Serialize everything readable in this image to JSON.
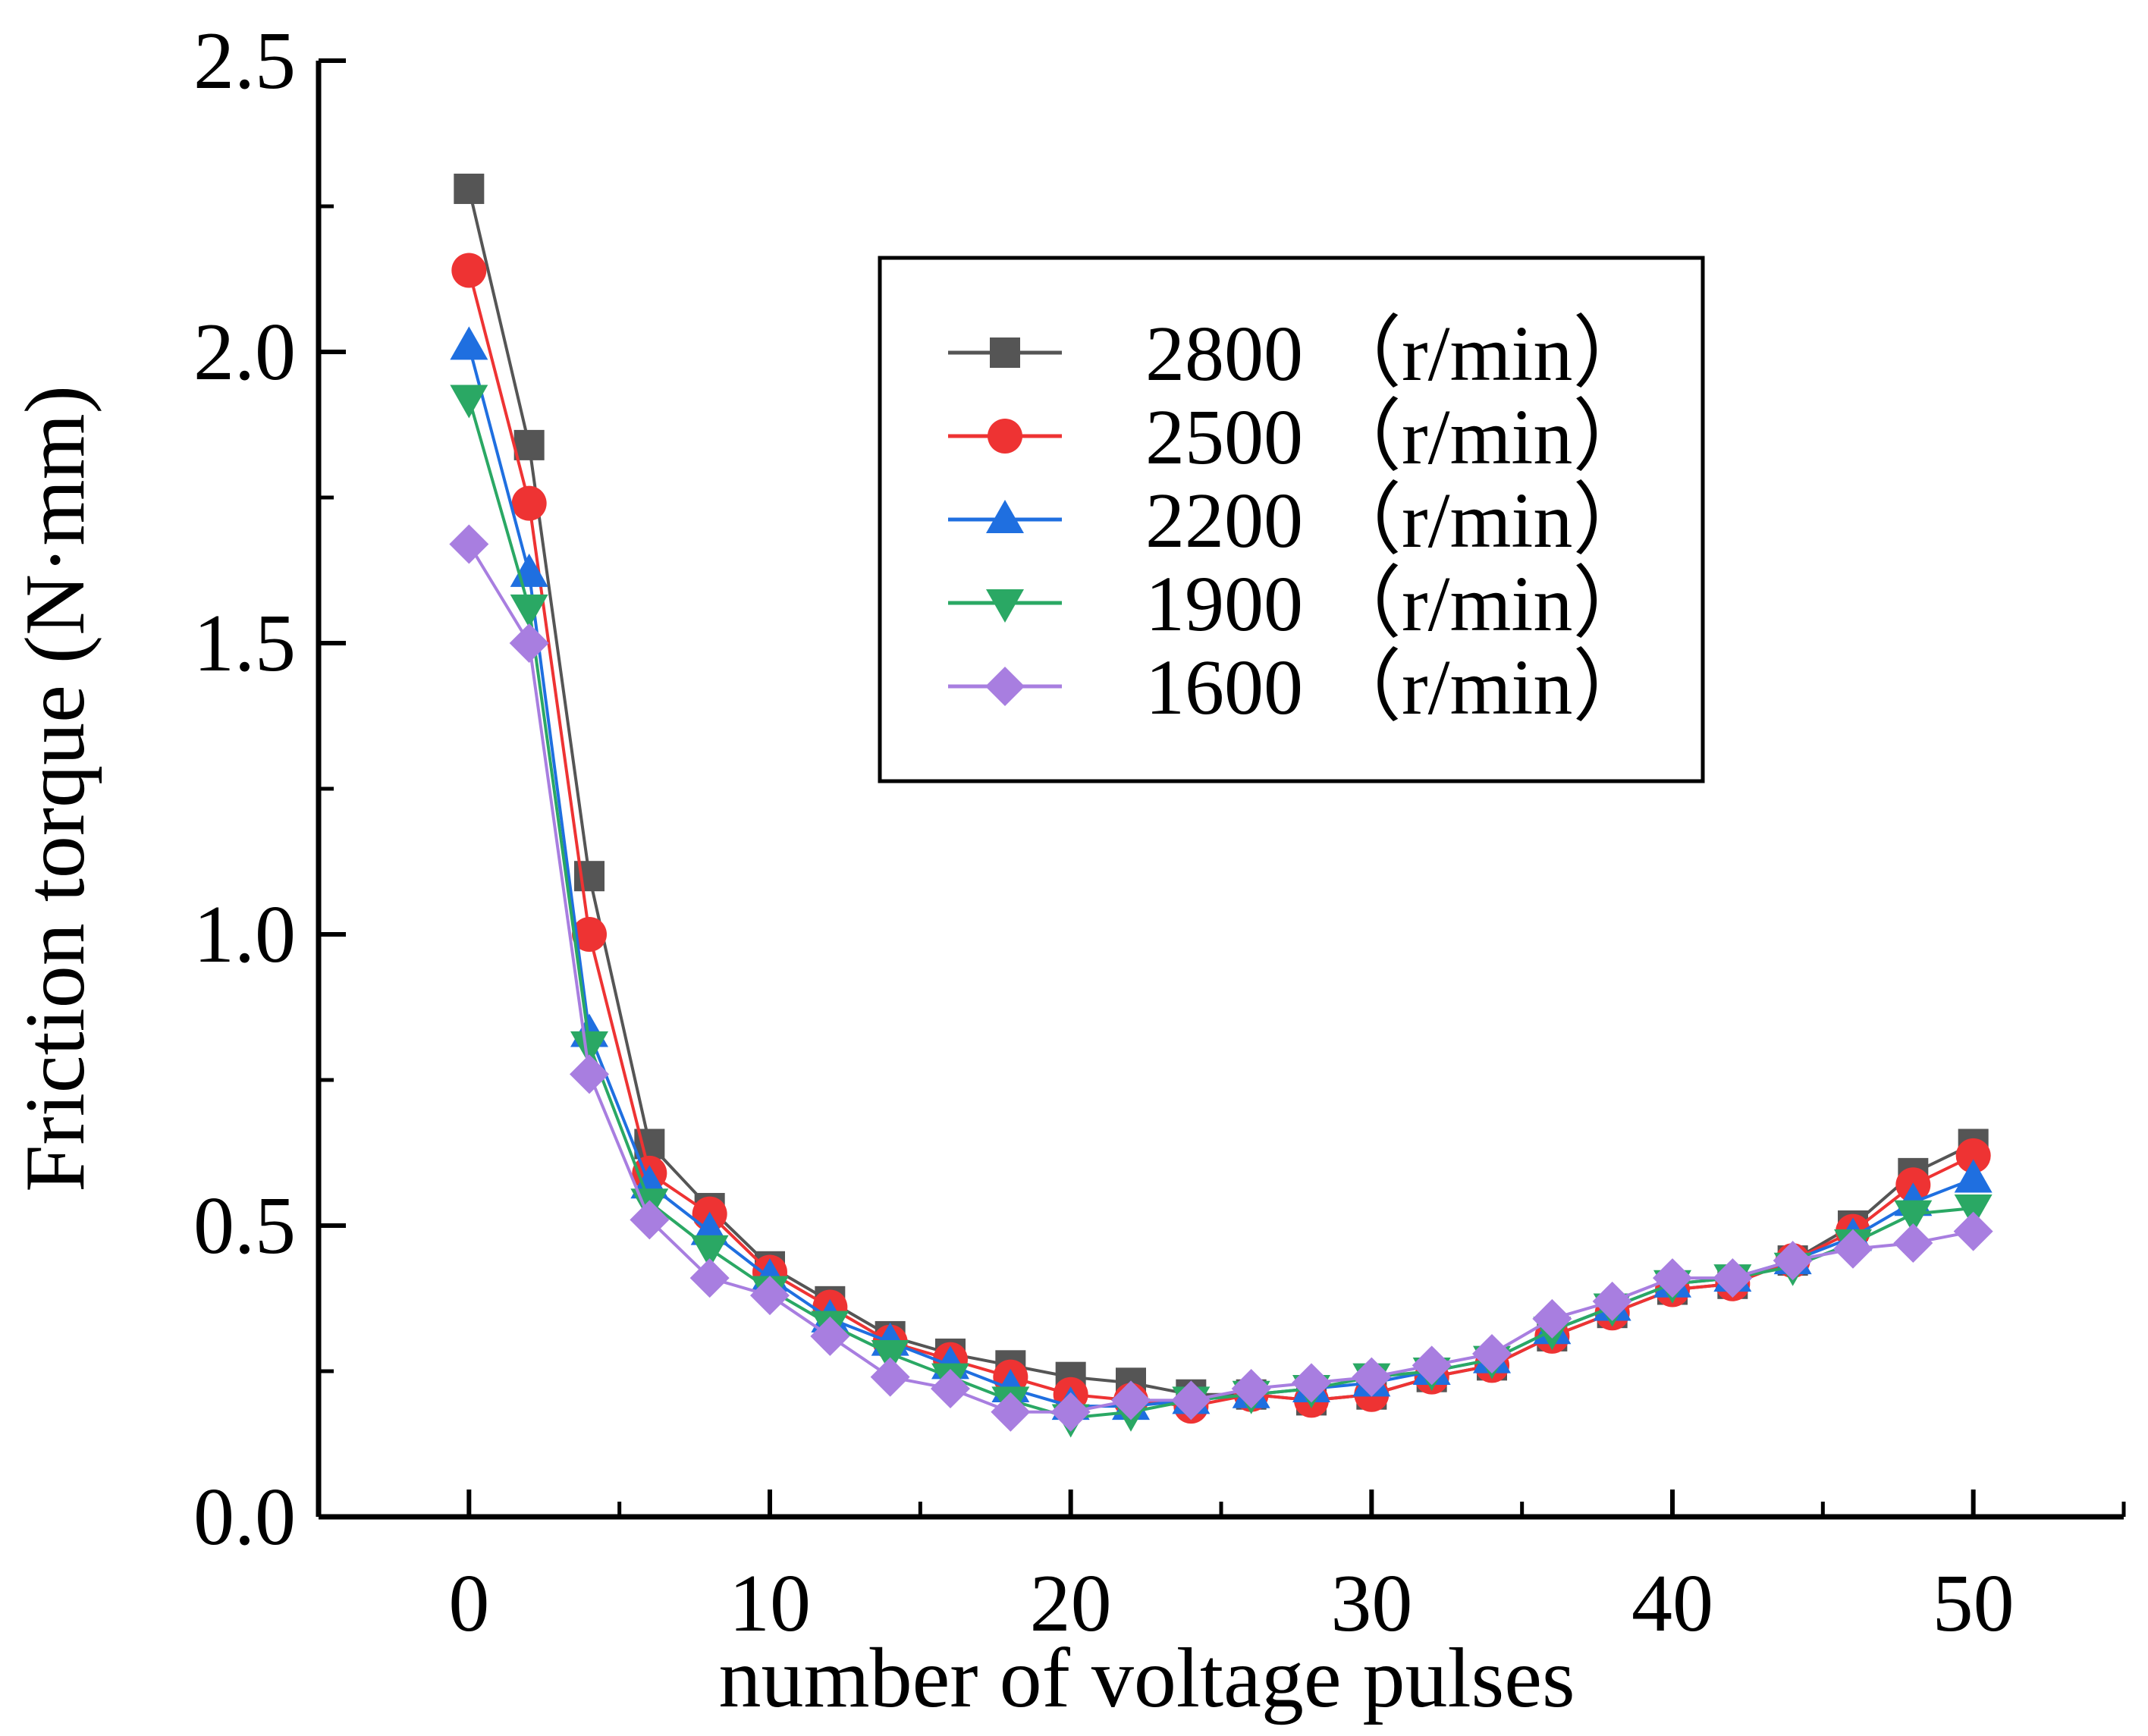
{
  "chart_data": {
    "type": "line",
    "title": "",
    "xlabel": "number of voltage pulses",
    "ylabel": "Friction torque (N·mm)",
    "xlim": [
      -5,
      55
    ],
    "ylim": [
      0,
      2.5
    ],
    "xticks": [
      0,
      10,
      20,
      30,
      40,
      50
    ],
    "xtick_labels": [
      "0",
      "10",
      "20",
      "30",
      "40",
      "50"
    ],
    "yticks": [
      0,
      0.5,
      1.0,
      1.5,
      2.0,
      2.5
    ],
    "ytick_labels": [
      "0.0",
      "0.5",
      "1.0",
      "1.5",
      "2.0",
      "2.5"
    ],
    "grid": false,
    "legend_position": "top-right",
    "x": [
      0,
      2,
      4,
      6,
      8,
      10,
      12,
      14,
      16,
      18,
      20,
      22,
      24,
      26,
      28,
      30,
      32,
      34,
      36,
      38,
      40,
      42,
      44,
      46,
      48,
      50
    ],
    "series": [
      {
        "name": "2800 （r/min）",
        "color": "#555555",
        "marker": "square",
        "values": [
          2.28,
          1.84,
          1.1,
          0.64,
          0.53,
          0.43,
          0.37,
          0.31,
          0.28,
          0.26,
          0.24,
          0.23,
          0.21,
          0.21,
          0.2,
          0.21,
          0.24,
          0.26,
          0.31,
          0.35,
          0.39,
          0.4,
          0.44,
          0.5,
          0.59,
          0.64
        ]
      },
      {
        "name": "2500 （r/min）",
        "color": "#ee3333",
        "marker": "circle",
        "values": [
          2.14,
          1.74,
          1.0,
          0.59,
          0.52,
          0.42,
          0.36,
          0.3,
          0.27,
          0.24,
          0.21,
          0.2,
          0.19,
          0.21,
          0.2,
          0.21,
          0.24,
          0.26,
          0.31,
          0.35,
          0.39,
          0.4,
          0.44,
          0.49,
          0.57,
          0.62
        ]
      },
      {
        "name": "2200 （r/min）",
        "color": "#1f6fe0",
        "marker": "triangle-up",
        "values": [
          2.01,
          1.62,
          0.83,
          0.57,
          0.49,
          0.41,
          0.34,
          0.3,
          0.26,
          0.22,
          0.19,
          0.19,
          0.2,
          0.21,
          0.22,
          0.23,
          0.25,
          0.27,
          0.32,
          0.36,
          0.4,
          0.41,
          0.44,
          0.48,
          0.54,
          0.58
        ]
      },
      {
        "name": "1900 （r/min）",
        "color": "#2aa864",
        "marker": "triangle-down",
        "values": [
          1.92,
          1.56,
          0.81,
          0.54,
          0.46,
          0.39,
          0.33,
          0.28,
          0.24,
          0.2,
          0.17,
          0.18,
          0.2,
          0.21,
          0.22,
          0.24,
          0.25,
          0.27,
          0.32,
          0.36,
          0.4,
          0.41,
          0.43,
          0.47,
          0.52,
          0.53
        ]
      },
      {
        "name": "1600 （r/min）",
        "color": "#a87ee0",
        "marker": "diamond",
        "values": [
          1.67,
          1.5,
          0.76,
          0.51,
          0.41,
          0.38,
          0.31,
          0.24,
          0.22,
          0.18,
          0.18,
          0.2,
          0.2,
          0.22,
          0.23,
          0.24,
          0.26,
          0.28,
          0.34,
          0.37,
          0.41,
          0.41,
          0.44,
          0.46,
          0.47,
          0.49
        ]
      }
    ]
  }
}
